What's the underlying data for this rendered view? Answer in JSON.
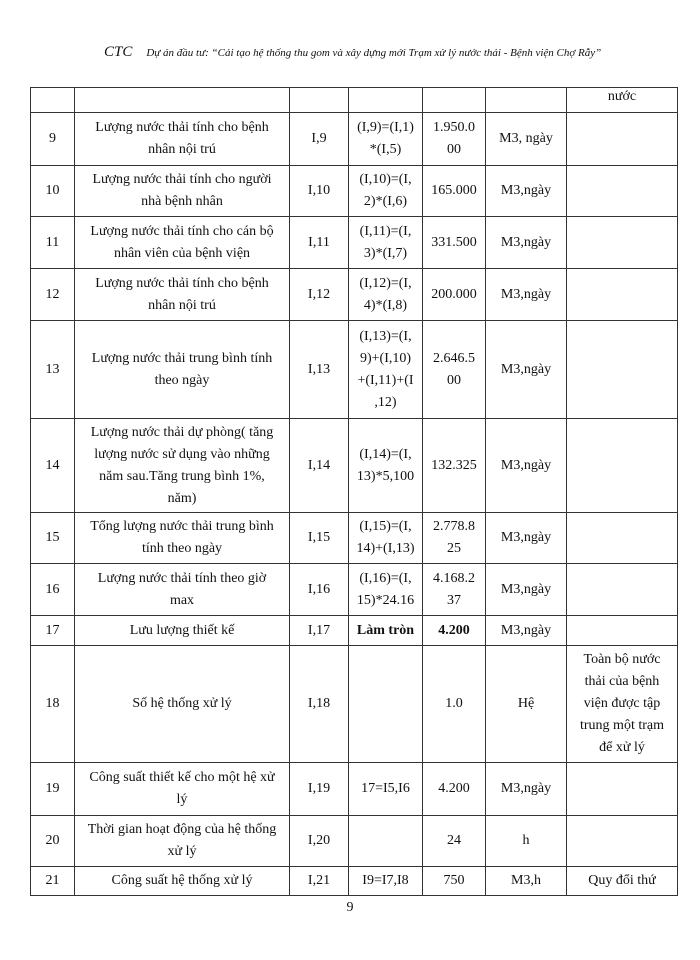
{
  "header": {
    "logo": "CTC",
    "project": "Dự án đầu tư:  “Cải tạo hệ thống thu gom và xây dựng   mới Trạm  xử lý nước thải - Bệnh viện Chợ Rẫy”"
  },
  "rows": [
    {
      "no": "",
      "name": "",
      "code": "",
      "formula": "",
      "value": "",
      "unit": "",
      "note": "nước"
    },
    {
      "no": "9",
      "name": "Lượng nước thải tính cho bệnh\nnhân nội trú",
      "code": "I,9",
      "formula": "(I,9)=(I,1)\n*(I,5)",
      "value": "1.950.0\n00",
      "unit": "M3, ngày",
      "note": ""
    },
    {
      "no": "10",
      "name": "Lượng nước thải tính cho người\nnhà bệnh nhân",
      "code": "I,10",
      "formula": "(I,10)=(I,\n2)*(I,6)",
      "value": "165.000",
      "unit": "M3,ngày",
      "note": ""
    },
    {
      "no": "11",
      "name": "Lượng nước thải tính cho cán bộ\nnhân viên của bệnh viện",
      "code": "I,11",
      "formula": "(I,11)=(I,\n3)*(I,7)",
      "value": "331.500",
      "unit": "M3,ngày",
      "note": ""
    },
    {
      "no": "12",
      "name": "Lượng nước thải tính cho bệnh\nnhân nội trú",
      "code": "I,12",
      "formula": "(I,12)=(I,\n4)*(I,8)",
      "value": "200.000",
      "unit": "M3,ngày",
      "note": ""
    },
    {
      "no": "13",
      "name": "Lượng nước thải trung bình tính\ntheo ngày",
      "code": "I,13",
      "formula": "(I,13)=(I,\n9)+(I,10)\n+(I,11)+(I\n,12)",
      "value": "2.646.5\n00",
      "unit": "M3,ngày",
      "note": ""
    },
    {
      "no": "14",
      "name": "Lượng nước thải dự phòng( tăng\nlượng nước sử dụng vào những\nnăm sau.Tăng  trung bình 1%,\nnăm)",
      "code": "I,14",
      "formula": "(I,14)=(I,\n13)*5,100",
      "value": "132.325",
      "unit": "M3,ngày",
      "note": ""
    },
    {
      "no": "15",
      "name": "Tổng lượng nước thải trung bình\ntính theo ngày",
      "code": "I,15",
      "formula": "(I,15)=(I,\n14)+(I,13)",
      "value": "2.778.8\n25",
      "unit": "M3,ngày",
      "note": ""
    },
    {
      "no": "16",
      "name": "Lượng nước thải tính theo giờ\nmax",
      "code": "I,16",
      "formula": "(I,16)=(I,\n15)*24.16",
      "value": "4.168.2\n37",
      "unit": "M3,ngày",
      "note": ""
    },
    {
      "no": "17",
      "name": "Lưu lượng thiết kế",
      "code": "I,17",
      "formula": "Làm tròn",
      "value": "4.200",
      "unit": "M3,ngày",
      "note": "",
      "bold": true
    },
    {
      "no": "18",
      "name": "Số hệ thống xử lý",
      "code": "I,18",
      "formula": "",
      "value": "1.0",
      "unit": "Hệ",
      "note": "Toàn bộ nước\nthải của bệnh\nviện được tập\ntrung một trạm\nđể xử lý"
    },
    {
      "no": "19",
      "name": "Công suất thiết kế cho một hệ xử\nlý",
      "code": "I,19",
      "formula": "17=I5,I6",
      "value": "4.200",
      "unit": "M3,ngày",
      "note": ""
    },
    {
      "no": "20",
      "name": "Thời gian hoạt động của hệ thống\nxử lý",
      "code": "I,20",
      "formula": "",
      "value": "24",
      "unit": "h",
      "note": ""
    },
    {
      "no": "21",
      "name": "Công suất hệ thống xử lý",
      "code": "I,21",
      "formula": "I9=I7,I8",
      "value": "750",
      "unit": "M3,h",
      "note": "Quy đổi thứ"
    }
  ],
  "page_number": "9"
}
